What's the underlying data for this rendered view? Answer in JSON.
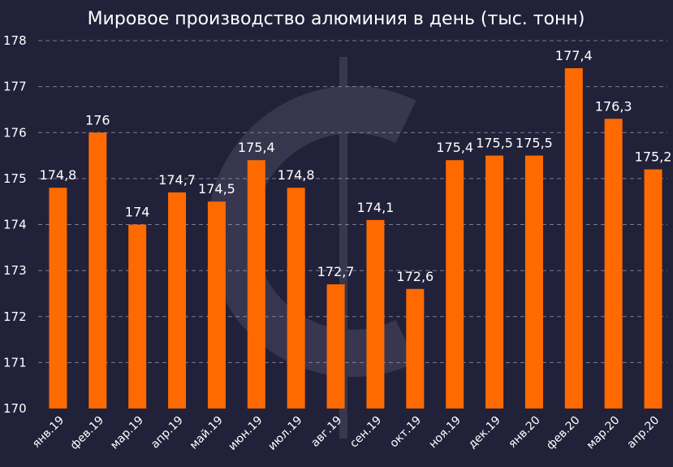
{
  "chart_data": {
    "type": "bar",
    "title": "Мировое производство алюминия в день (тыс. тонн)",
    "xlabel": "",
    "ylabel": "",
    "categories": [
      "янв.19",
      "фев.19",
      "мар.19",
      "апр.19",
      "май.19",
      "июн.19",
      "июл.19",
      "авг.19",
      "сен.19",
      "окт.19",
      "ноя.19",
      "дек.19",
      "янв.20",
      "фев.20",
      "мар.20",
      "апр.20"
    ],
    "values": [
      174.8,
      176,
      174,
      174.7,
      174.5,
      175.4,
      174.8,
      172.7,
      174.1,
      172.6,
      175.4,
      175.5,
      175.5,
      177.4,
      176.3,
      175.2
    ],
    "data_labels": [
      "174,8",
      "176",
      "174",
      "174,7",
      "174,5",
      "175,4",
      "174,8",
      "172,7",
      "174,1",
      "172,6",
      "175,4",
      "175,5",
      "175,5",
      "177,4",
      "176,3",
      "175,2"
    ],
    "ylim": [
      170,
      178
    ],
    "yticks": [
      170,
      171,
      172,
      173,
      174,
      175,
      176,
      177,
      178
    ],
    "grid": true,
    "legend": "none",
    "colors": {
      "bar": "#ff6a00",
      "background": "#22213a",
      "grid": "#9a9ab0",
      "text": "#ffffff"
    }
  }
}
